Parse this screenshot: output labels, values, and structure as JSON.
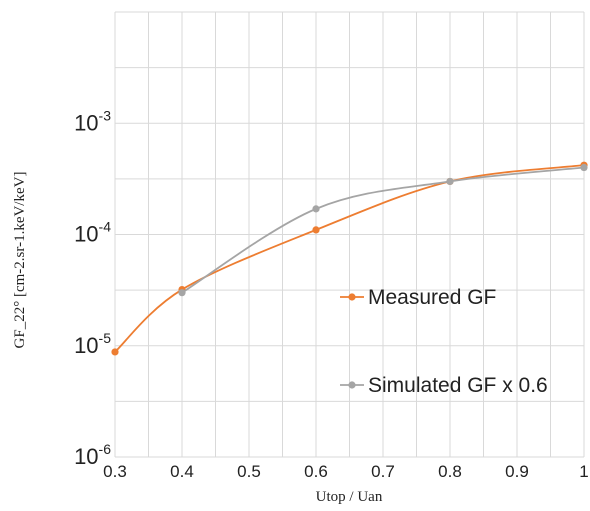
{
  "chart_data": {
    "type": "line",
    "xlabel": "Utop / Uan",
    "ylabel": "GF_22° [cm-2.sr-1.keV/keV]",
    "x_ticks": [
      "0.3",
      "0.4",
      "0.5",
      "0.6",
      "0.7",
      "0.8",
      "0.9",
      "1"
    ],
    "y_ticks": [
      {
        "base": "10",
        "exp": "-6",
        "value": 1e-06
      },
      {
        "base": "10",
        "exp": "-5",
        "value": 1e-05
      },
      {
        "base": "10",
        "exp": "-4",
        "value": 0.0001
      },
      {
        "base": "10",
        "exp": "-3",
        "value": 0.001
      }
    ],
    "xlim": [
      0.3,
      1.0
    ],
    "ylim": [
      1e-06,
      0.01
    ],
    "y_scale": "log",
    "grid": true,
    "legend_position": "right",
    "series": [
      {
        "name": "Measured GF",
        "color": "#ed7d31",
        "points": [
          {
            "x": 0.3,
            "y": 8.8e-06
          },
          {
            "x": 0.4,
            "y": 3.2e-05
          },
          {
            "x": 0.6,
            "y": 0.00011
          },
          {
            "x": 0.8,
            "y": 0.0003
          },
          {
            "x": 1.0,
            "y": 0.00042
          }
        ]
      },
      {
        "name": "Simulated GF x 0.6",
        "color": "#a5a5a5",
        "points": [
          {
            "x": 0.4,
            "y": 3e-05
          },
          {
            "x": 0.6,
            "y": 0.00017
          },
          {
            "x": 0.8,
            "y": 0.0003
          },
          {
            "x": 1.0,
            "y": 0.0004
          }
        ]
      }
    ]
  }
}
